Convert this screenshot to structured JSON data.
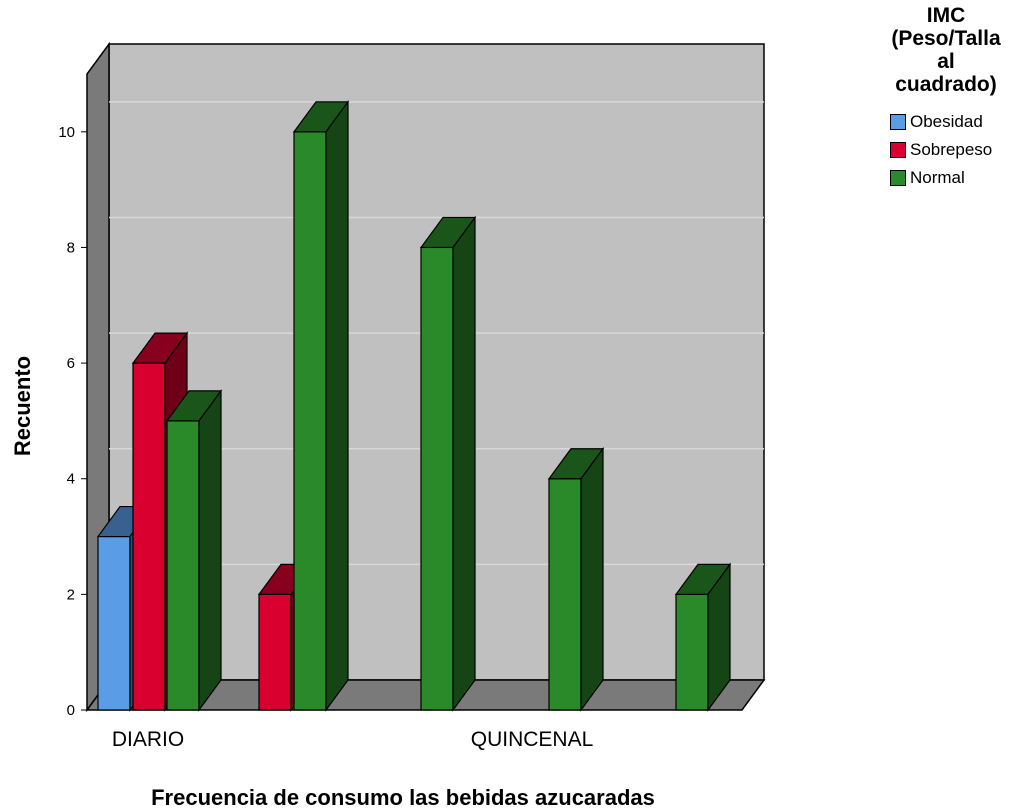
{
  "legend": {
    "title_lines": [
      "IMC",
      "(Peso/Talla",
      "al",
      "cuadrado)"
    ],
    "items": [
      {
        "label": "Obesidad",
        "color": "#5b9ce6"
      },
      {
        "label": "Sobrepeso",
        "color": "#d9002f"
      },
      {
        "label": "Normal",
        "color": "#2a8a2a"
      }
    ]
  },
  "chart_data": {
    "type": "bar",
    "style": "3d-clustered",
    "xlabel": "Frecuencia de consumo las bebidas azucaradas",
    "ylabel": "Recuento",
    "ylim": [
      0,
      11
    ],
    "yticks": [
      0,
      2,
      4,
      6,
      8,
      10
    ],
    "grid": true,
    "legend_position": "top-right",
    "category_labels_shown": [
      "DIARIO",
      "QUINCENAL"
    ],
    "bars": [
      {
        "series": "Obesidad",
        "value": 3
      },
      {
        "series": "Sobrepeso",
        "value": 6
      },
      {
        "series": "Normal",
        "value": 5
      },
      {
        "series": "Sobrepeso",
        "value": 2
      },
      {
        "series": "Normal",
        "value": 10
      },
      {
        "series": "Normal",
        "value": 8
      },
      {
        "series": "Normal",
        "value": 4
      },
      {
        "series": "Normal",
        "value": 2
      }
    ]
  }
}
